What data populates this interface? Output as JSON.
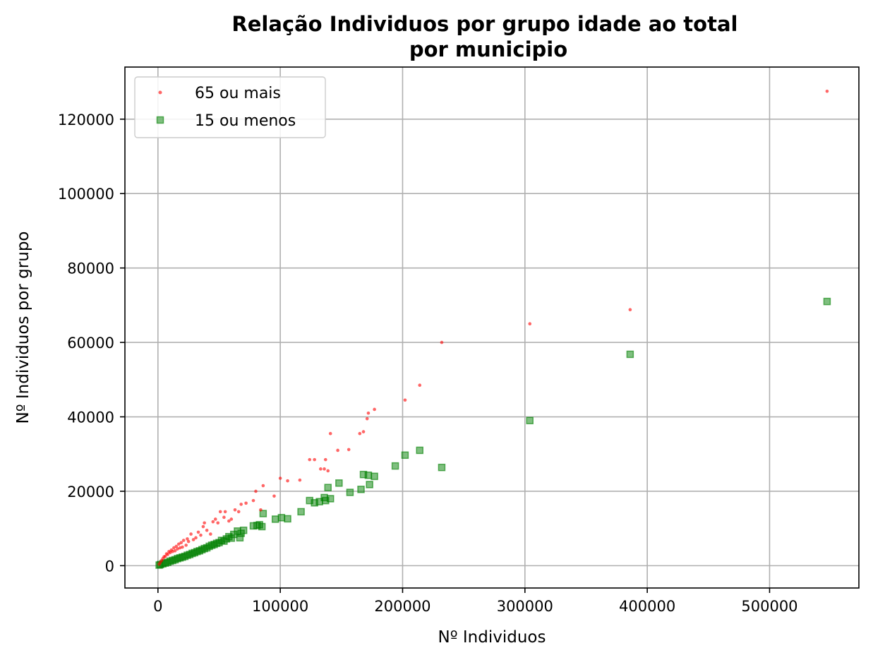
{
  "chart_data": {
    "type": "scatter",
    "title": "Relação Individuos por grupo idade ao total\npor municipio",
    "xlabel": "Nº Individuos",
    "ylabel": "Nº Individuos por grupo",
    "xlim": [
      -27000,
      573000
    ],
    "ylim": [
      -6000,
      134000
    ],
    "xticks": [
      0,
      100000,
      200000,
      300000,
      400000,
      500000
    ],
    "yticks": [
      0,
      20000,
      40000,
      60000,
      80000,
      100000,
      120000
    ],
    "grid": true,
    "legend_position": "top-left",
    "series": [
      {
        "name": "65 ou mais",
        "color": "#ff0000",
        "marker": "circle",
        "x": [
          547000,
          386000,
          304000,
          232000,
          214000,
          202000,
          177000,
          172000,
          171000,
          168000,
          165000,
          156000,
          147000,
          141000,
          139000,
          137000,
          136000,
          133000,
          128000,
          124000,
          116000,
          106000,
          100000,
          95000,
          86000,
          84000,
          80000,
          78000,
          72000,
          68000,
          66000,
          63000,
          60000,
          58000,
          55000,
          54000,
          51000,
          49000,
          47000,
          45000,
          43000,
          40000,
          38000,
          37000,
          35000,
          33000,
          31000,
          29000,
          27000,
          25000,
          24000,
          23000,
          21000,
          20000,
          19000,
          18000,
          17000,
          16000,
          15000,
          14000,
          13000,
          12000,
          11000,
          10000,
          9000,
          8000,
          7000,
          6000,
          5000,
          4000,
          3000,
          2000,
          1000
        ],
        "y": [
          127500,
          68800,
          65000,
          60000,
          48500,
          44500,
          42000,
          41000,
          39500,
          36000,
          35500,
          31200,
          31000,
          35500,
          25500,
          28500,
          26000,
          26000,
          28500,
          28500,
          23000,
          22800,
          23500,
          18700,
          21500,
          15000,
          20000,
          17500,
          16800,
          16500,
          14500,
          15000,
          12500,
          12000,
          14500,
          13000,
          14500,
          11500,
          12500,
          11800,
          8500,
          9500,
          11500,
          10500,
          8200,
          9000,
          7500,
          7000,
          8500,
          6500,
          7200,
          5500,
          6800,
          5000,
          6200,
          4800,
          5800,
          4500,
          5200,
          4000,
          4800,
          3800,
          4200,
          3500,
          3800,
          3000,
          3200,
          2500,
          2400,
          1900,
          1400,
          900,
          400
        ]
      },
      {
        "name": "15 ou menos",
        "color": "#008000",
        "marker": "square",
        "x": [
          547000,
          386000,
          304000,
          232000,
          214000,
          202000,
          194000,
          177000,
          173000,
          172000,
          168000,
          166000,
          157000,
          148000,
          141000,
          139000,
          137000,
          136000,
          132000,
          128000,
          124000,
          117000,
          106000,
          101000,
          96000,
          86000,
          85000,
          83000,
          81000,
          78000,
          70000,
          68000,
          67000,
          65000,
          62000,
          60000,
          58000,
          56000,
          54000,
          52000,
          50000,
          48000,
          46000,
          44000,
          42000,
          40000,
          38000,
          36000,
          34000,
          32000,
          30000,
          28000,
          26000,
          24000,
          22000,
          20000,
          18000,
          16000,
          14000,
          12000,
          10000,
          8000,
          6000,
          4000,
          2000,
          1000
        ],
        "y": [
          71000,
          56800,
          39000,
          26400,
          31000,
          29700,
          26800,
          24000,
          21800,
          24300,
          24500,
          20500,
          19700,
          22200,
          18000,
          21000,
          17500,
          18300,
          17200,
          16900,
          17500,
          14500,
          12600,
          12900,
          12500,
          14000,
          10500,
          11000,
          10800,
          10700,
          9500,
          8700,
          7500,
          9300,
          8400,
          7400,
          7800,
          7200,
          6600,
          6800,
          6200,
          6000,
          5700,
          5500,
          5200,
          4800,
          4600,
          4300,
          4000,
          3800,
          3500,
          3300,
          3000,
          2800,
          2500,
          2300,
          2100,
          1900,
          1600,
          1400,
          1200,
          900,
          700,
          500,
          300,
          150
        ]
      }
    ]
  }
}
